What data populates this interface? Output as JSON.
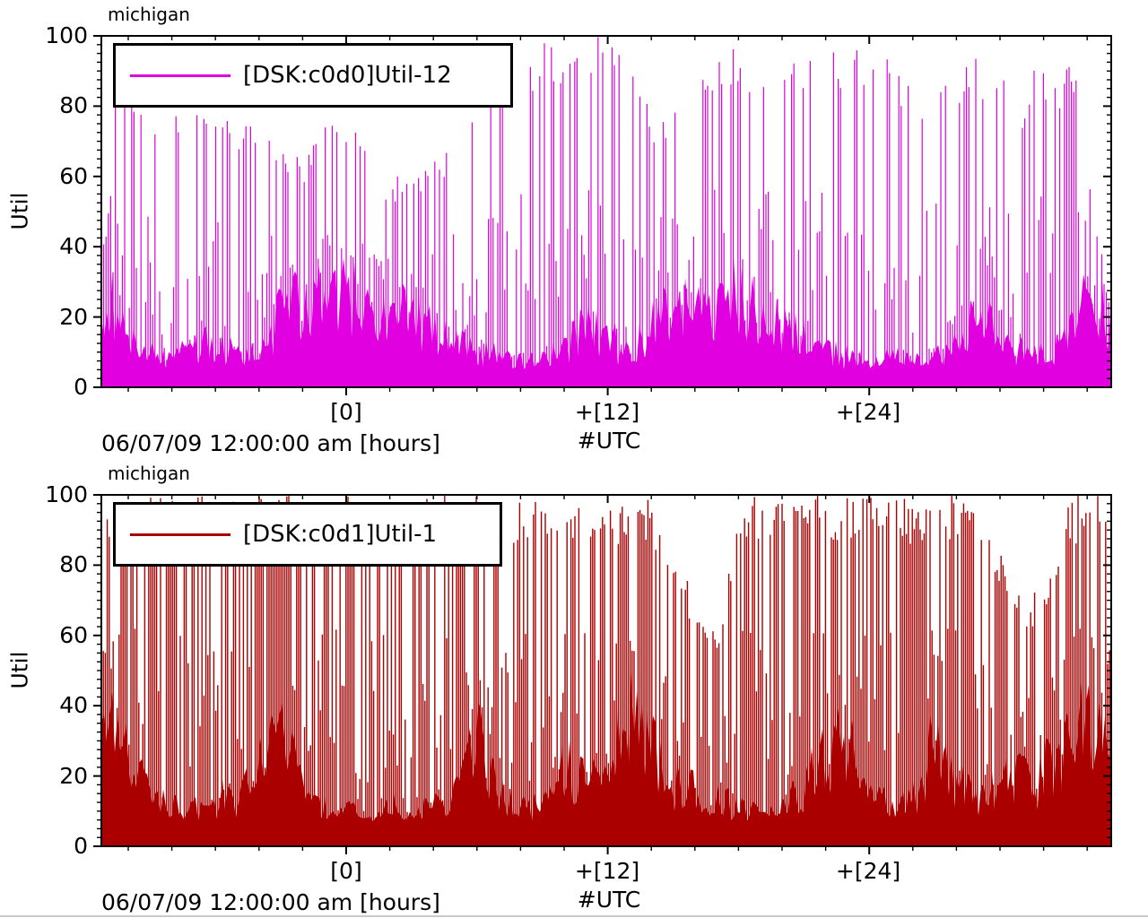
{
  "page": {
    "background": "#ffffff",
    "divider_color": "#c9c9c9"
  },
  "charts": [
    {
      "title": "michigan",
      "ylabel": "Util",
      "legend": {
        "label": "[DSK:c0d0]Util-12",
        "color": "#e000e0"
      },
      "y_axis": {
        "tick_labels": [
          "100",
          "80",
          "60",
          "40",
          "20",
          "0"
        ],
        "min": 0,
        "max": 100
      },
      "x_axis": {
        "tick_labels": [
          "[0]",
          "+[12]",
          "+[24]"
        ],
        "date_label": "06/07/09 12:00:00 am [hours]",
        "utc_label": "#UTC"
      }
    },
    {
      "title": "michigan",
      "ylabel": "Util",
      "legend": {
        "label": "[DSK:c0d1]Util-1",
        "color": "#aa0000"
      },
      "y_axis": {
        "tick_labels": [
          "100",
          "80",
          "60",
          "40",
          "20",
          "0"
        ],
        "min": 0,
        "max": 100
      },
      "x_axis": {
        "tick_labels": [
          "[0]",
          "+[12]",
          "+[24]"
        ],
        "date_label": "06/07/09 12:00:00 am [hours]",
        "utc_label": "#UTC"
      }
    }
  ],
  "chart_data": [
    {
      "type": "bar",
      "style": "impulse",
      "title": "michigan",
      "legend": "[DSK:c0d0]Util-12",
      "color": "#e000e0",
      "xlabel": "06/07/09 12:00:00 am [hours] #UTC",
      "ylabel": "Util",
      "ylim": [
        0,
        100
      ],
      "x_hours_range": [
        -11.2,
        35.1
      ],
      "x_tick_hours": [
        0,
        12,
        24
      ],
      "x_tick_labels": [
        "[0]",
        "+[12]",
        "+[24]"
      ],
      "envelope_hours_start": -12,
      "peak_util": [
        100,
        100,
        85,
        80,
        82,
        80,
        80,
        78,
        76,
        70,
        66,
        75,
        80,
        66,
        60,
        62,
        66,
        72,
        85,
        100,
        95,
        100,
        98,
        100,
        100,
        95,
        80,
        78,
        90,
        95,
        100,
        95,
        90,
        95,
        100,
        95,
        100,
        95,
        90,
        85,
        90,
        95,
        90,
        85,
        95,
        90,
        100,
        85,
        85
      ],
      "typical_util": [
        40,
        40,
        25,
        15,
        12,
        15,
        20,
        15,
        12,
        30,
        35,
        35,
        38,
        35,
        32,
        30,
        25,
        20,
        15,
        12,
        10,
        12,
        15,
        30,
        20,
        15,
        25,
        35,
        30,
        35,
        38,
        30,
        25,
        20,
        15,
        12,
        10,
        12,
        10,
        12,
        20,
        30,
        25,
        15,
        12,
        20,
        35,
        30,
        30
      ],
      "baseline_util": 5,
      "tall_frac": 0.32,
      "spike_dx": 2.6,
      "spike_w": 1.2
    },
    {
      "type": "bar",
      "style": "impulse",
      "title": "michigan",
      "legend": "[DSK:c0d1]Util-1",
      "color": "#aa0000",
      "xlabel": "06/07/09 12:00:00 am [hours] #UTC",
      "ylabel": "Util",
      "ylim": [
        0,
        100
      ],
      "x_hours_range": [
        -11.2,
        35.1
      ],
      "x_tick_hours": [
        0,
        12,
        24
      ],
      "x_tick_labels": [
        "[0]",
        "+[12]",
        "+[24]"
      ],
      "envelope_hours_start": -12,
      "peak_util": [
        100,
        100,
        100,
        100,
        100,
        100,
        100,
        100,
        100,
        100,
        100,
        100,
        100,
        100,
        100,
        100,
        100,
        100,
        100,
        100,
        100,
        100,
        100,
        100,
        100,
        100,
        100,
        90,
        70,
        60,
        100,
        100,
        100,
        100,
        100,
        100,
        100,
        100,
        100,
        100,
        100,
        95,
        85,
        70,
        75,
        100,
        100,
        100,
        100
      ],
      "typical_util": [
        55,
        55,
        35,
        20,
        15,
        15,
        20,
        18,
        30,
        45,
        25,
        15,
        15,
        12,
        15,
        18,
        15,
        20,
        45,
        25,
        15,
        18,
        35,
        25,
        30,
        55,
        45,
        25,
        22,
        20,
        15,
        12,
        15,
        25,
        35,
        50,
        20,
        18,
        20,
        45,
        25,
        20,
        25,
        28,
        30,
        45,
        60,
        35,
        35
      ],
      "baseline_util": 7,
      "tall_frac": 0.5,
      "spike_dx": 2.2,
      "spike_w": 1.4
    }
  ]
}
